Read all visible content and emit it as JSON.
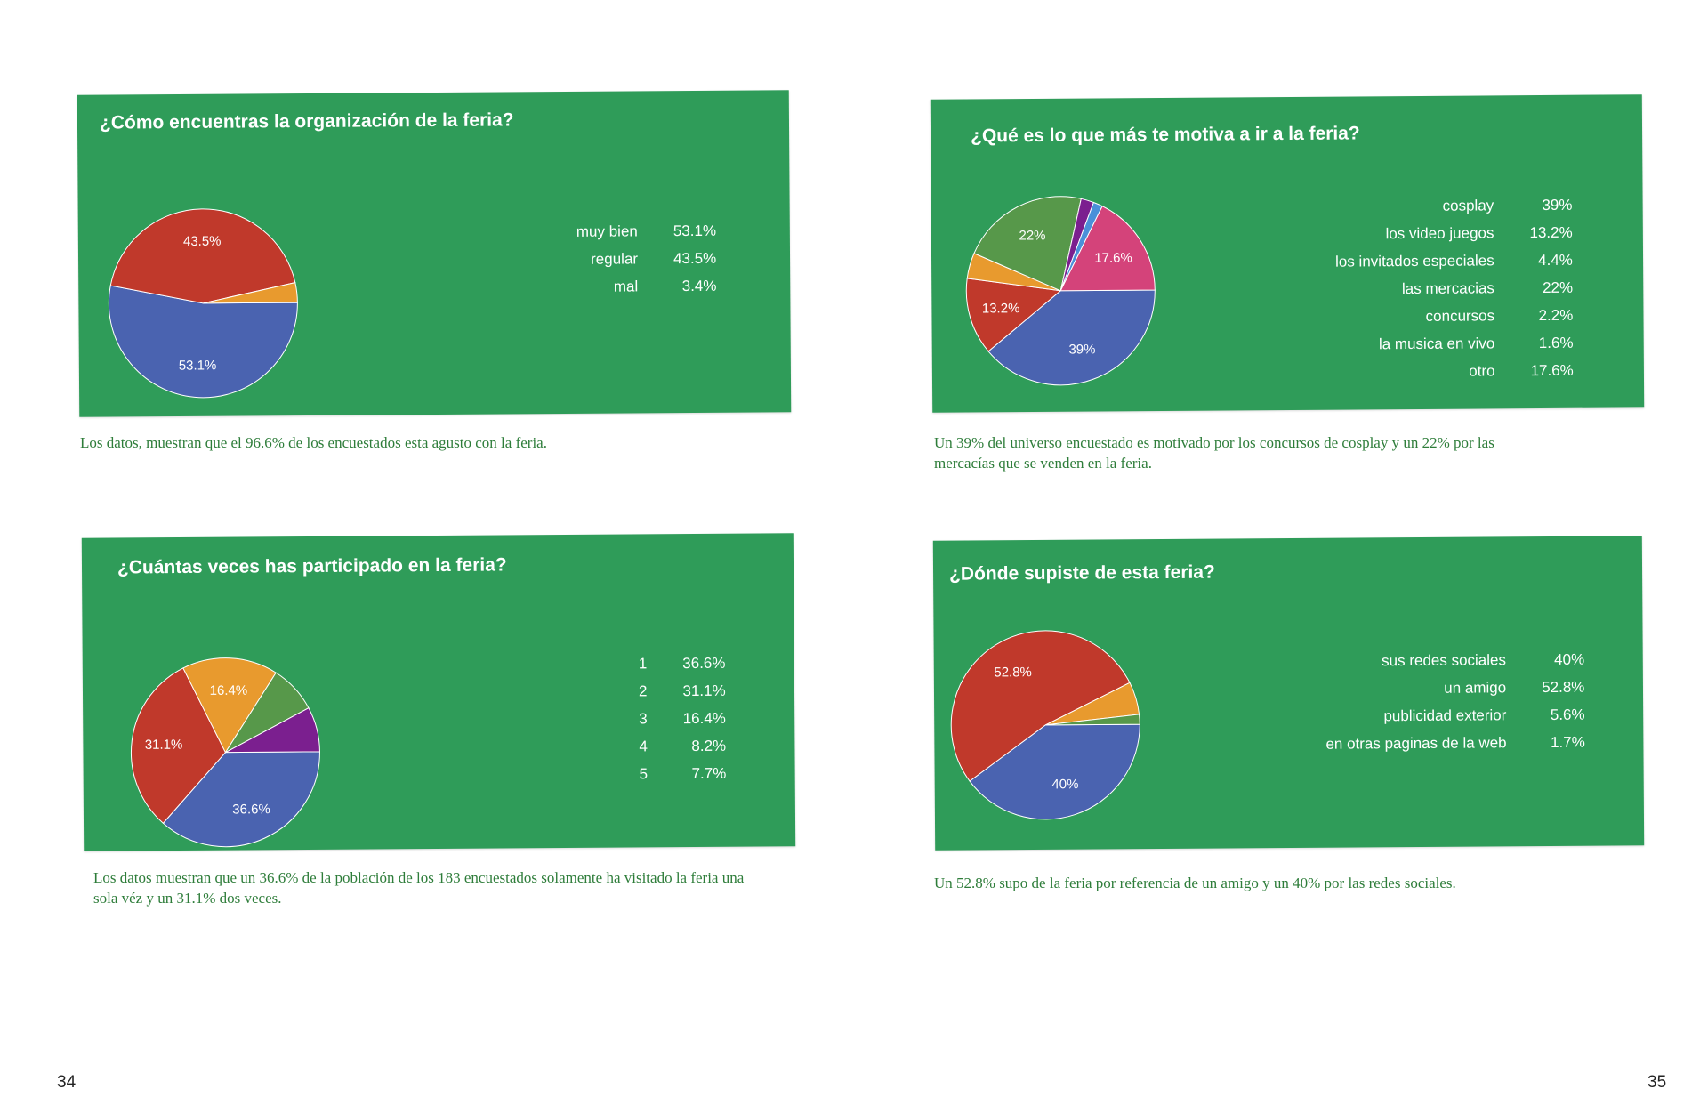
{
  "pages": {
    "left": "34",
    "right": "35"
  },
  "colors": {
    "card_bg": "#2f9c59",
    "caption_text": "#2e7d3a",
    "slice_blue": "#4a63b0",
    "slice_red": "#c0392b",
    "slice_orange": "#e89a2e",
    "slice_green": "#57984a",
    "slice_purple": "#7b1f8f",
    "slice_lightblue": "#4a90d9",
    "slice_pink": "#d4437a"
  },
  "chart_data": [
    {
      "type": "pie",
      "title": "¿Cómo encuentras la organización de la feria?",
      "categories": [
        "muy bien",
        "regular",
        "mal"
      ],
      "values": [
        53.1,
        43.5,
        3.4
      ],
      "value_labels": [
        "53.1%",
        "43.5%",
        "3.4%"
      ],
      "colors": [
        "#4a63b0",
        "#c0392b",
        "#e89a2e"
      ],
      "slice_labels": [
        "53.1%",
        "43.5%",
        ""
      ],
      "legend": "right",
      "caption": "Los datos, muestran que el 96.6% de los encuestados esta agusto con la feria."
    },
    {
      "type": "pie",
      "title": "¿Qué es lo que más te motiva a ir a la feria?",
      "categories": [
        "cosplay",
        "los video juegos",
        "los invitados especiales",
        "las mercacias",
        "concursos",
        "la musica en vivo",
        "otro"
      ],
      "values": [
        39,
        13.2,
        4.4,
        22,
        2.2,
        1.6,
        17.6
      ],
      "value_labels": [
        "39%",
        "13.2%",
        "4.4%",
        "22%",
        "2.2%",
        "1.6%",
        "17.6%"
      ],
      "colors": [
        "#4a63b0",
        "#c0392b",
        "#e89a2e",
        "#57984a",
        "#7b1f8f",
        "#4a90d9",
        "#d4437a"
      ],
      "slice_labels": [
        "39%",
        "13.2%",
        "",
        "22%",
        "",
        "",
        "17.6%"
      ],
      "legend": "right",
      "caption": "Un 39% del universo encuestado es motivado por los concursos de cosplay y un 22% por las mercacías que se venden en la feria."
    },
    {
      "type": "pie",
      "title": "¿Cuántas veces has participado en la feria?",
      "categories": [
        "1",
        "2",
        "3",
        "4",
        "5"
      ],
      "values": [
        36.6,
        31.1,
        16.4,
        8.2,
        7.7
      ],
      "value_labels": [
        "36.6%",
        "31.1%",
        "16.4%",
        "8.2%",
        "7.7%"
      ],
      "colors": [
        "#4a63b0",
        "#c0392b",
        "#e89a2e",
        "#57984a",
        "#7b1f8f"
      ],
      "slice_labels": [
        "36.6%",
        "31.1%",
        "16.4%",
        "",
        ""
      ],
      "legend": "right",
      "caption": "Los datos muestran que un 36.6% de la población de los 183 encuestados solamente ha visitado la feria una sola véz y un 31.1% dos veces."
    },
    {
      "type": "pie",
      "title": "¿Dónde supiste de esta feria?",
      "categories": [
        "sus redes sociales",
        "un amigo",
        "publicidad exterior",
        "en otras paginas de la web"
      ],
      "values": [
        40,
        52.8,
        5.6,
        1.7
      ],
      "value_labels": [
        "40%",
        "52.8%",
        "5.6%",
        "1.7%"
      ],
      "colors": [
        "#4a63b0",
        "#c0392b",
        "#e89a2e",
        "#57984a"
      ],
      "slice_labels": [
        "40%",
        "52.8%",
        "",
        ""
      ],
      "legend": "right",
      "caption": "Un 52.8% supo de la feria por referencia de un amigo y un 40% por las redes sociales."
    }
  ]
}
